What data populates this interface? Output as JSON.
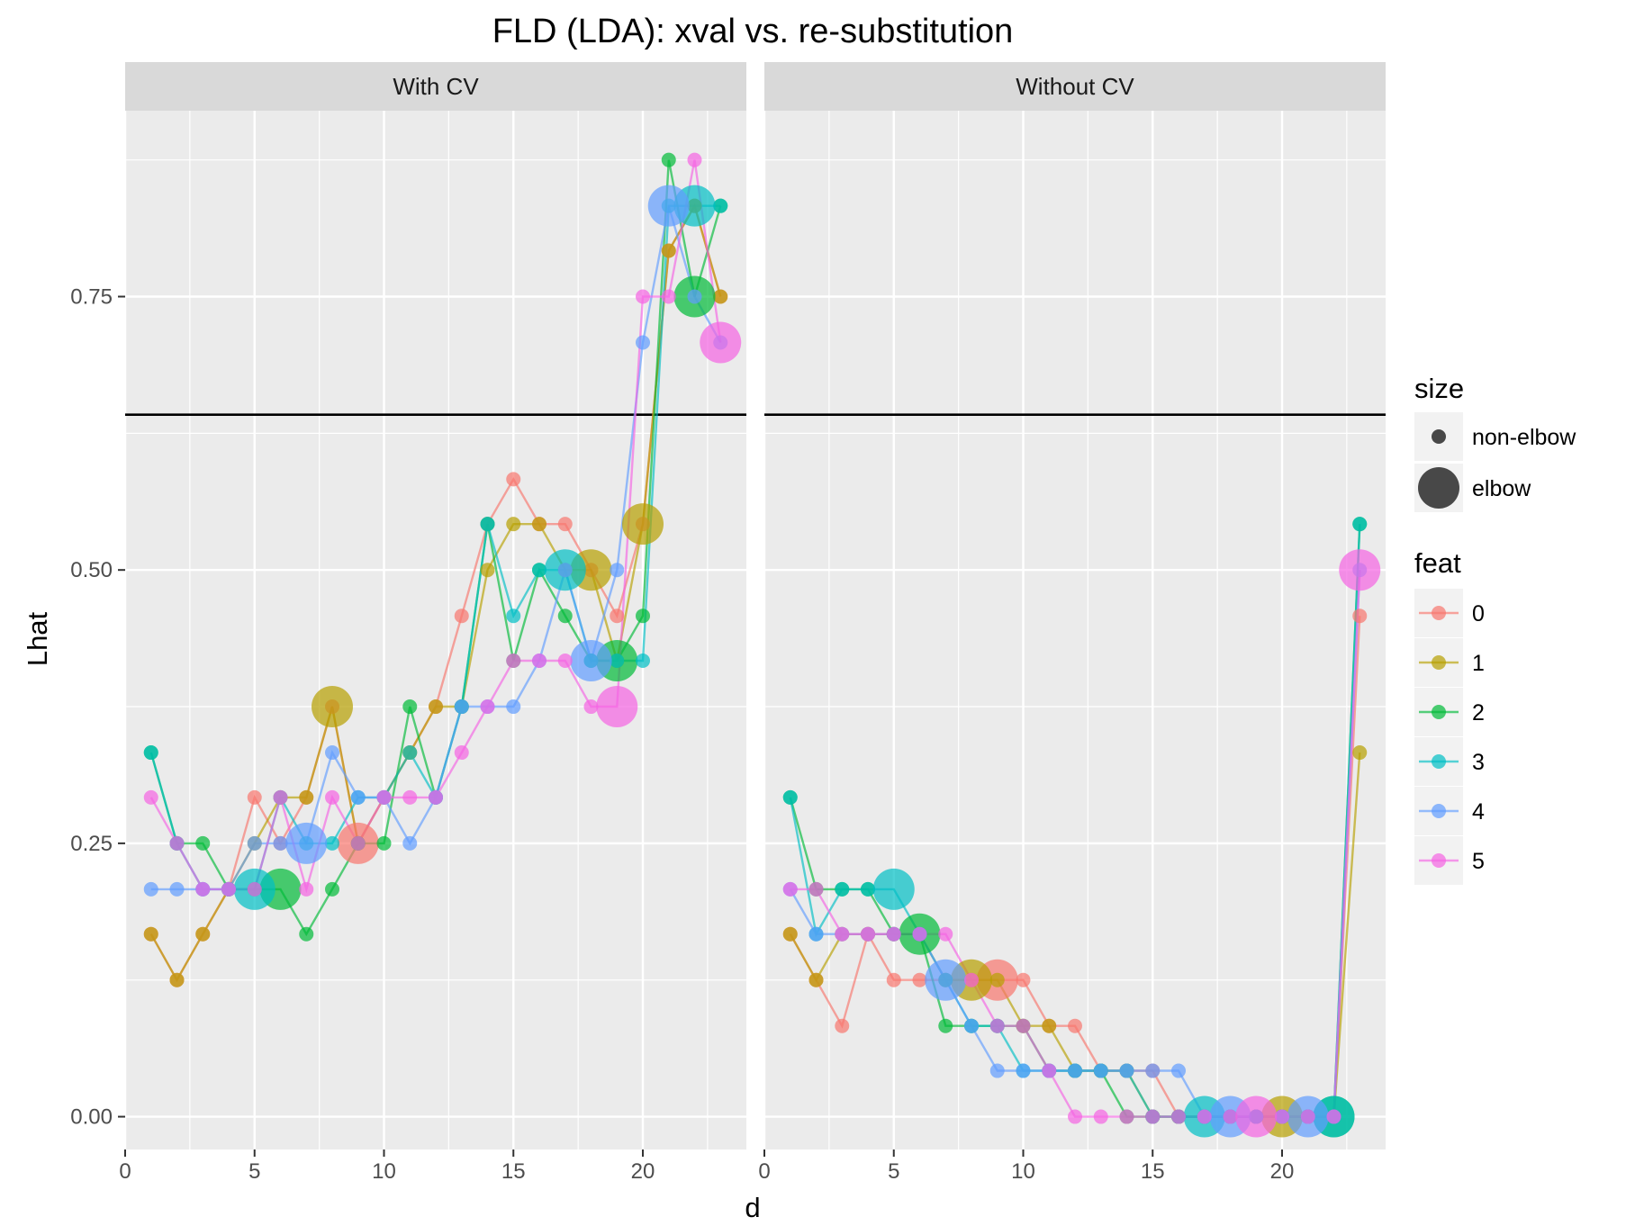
{
  "chart_data": {
    "type": "line",
    "title": "FLD (LDA): xval vs. re-substitution",
    "xlabel": "d",
    "ylabel": "Lhat",
    "xlim": [
      0,
      24
    ],
    "ylim": [
      -0.03,
      0.92
    ],
    "x_ticks": [
      0,
      5,
      10,
      15,
      20
    ],
    "y_ticks": [
      0.0,
      0.25,
      0.5,
      0.75
    ],
    "y_tick_labels": [
      "0.00",
      "0.25",
      "0.50",
      "0.75"
    ],
    "grid": true,
    "hline": 0.642,
    "legend_position": "right",
    "size_legend": {
      "title": "size",
      "entries": [
        "non-elbow",
        "elbow"
      ]
    },
    "color_legend": {
      "title": "feat",
      "entries": [
        "0",
        "1",
        "2",
        "3",
        "4",
        "5"
      ]
    },
    "colors": {
      "0": "#F8766D",
      "1": "#B79F00",
      "2": "#00BA38",
      "3": "#00BFC4",
      "4": "#619CFF",
      "5": "#F564E3"
    },
    "panels": [
      {
        "label": "With CV",
        "series": [
          {
            "name": "0",
            "values": [
              0.167,
              0.125,
              0.167,
              0.208,
              0.292,
              0.25,
              0.292,
              0.375,
              0.25,
              0.292,
              0.333,
              0.375,
              0.458,
              0.542,
              0.583,
              0.542,
              0.542,
              0.5,
              0.458,
              0.542,
              0.792,
              0.833,
              0.75
            ],
            "elbows": [
              9
            ]
          },
          {
            "name": "1",
            "values": [
              0.167,
              0.125,
              0.167,
              0.208,
              0.25,
              0.292,
              0.292,
              0.375,
              0.25,
              0.292,
              0.333,
              0.375,
              0.375,
              0.5,
              0.542,
              0.542,
              0.5,
              0.5,
              0.417,
              0.542,
              0.792,
              0.833,
              0.75
            ],
            "elbows": [
              8,
              18,
              20
            ]
          },
          {
            "name": "2",
            "values": [
              0.333,
              0.25,
              0.25,
              0.208,
              0.208,
              0.208,
              0.167,
              0.208,
              0.25,
              0.25,
              0.375,
              0.292,
              0.375,
              0.542,
              0.417,
              0.5,
              0.458,
              0.417,
              0.417,
              0.458,
              0.875,
              0.75,
              0.833
            ],
            "elbows": [
              6,
              19,
              22
            ]
          },
          {
            "name": "3",
            "values": [
              0.333,
              0.25,
              0.208,
              0.208,
              0.208,
              0.292,
              0.25,
              0.25,
              0.292,
              0.292,
              0.333,
              0.292,
              0.375,
              0.542,
              0.458,
              0.5,
              0.5,
              0.417,
              0.417,
              0.417,
              0.833,
              0.833,
              0.833
            ],
            "elbows": [
              5,
              17,
              22
            ]
          },
          {
            "name": "4",
            "values": [
              0.208,
              0.208,
              0.208,
              0.208,
              0.25,
              0.25,
              0.25,
              0.333,
              0.292,
              0.292,
              0.25,
              0.292,
              0.375,
              0.375,
              0.375,
              0.417,
              0.5,
              0.417,
              0.5,
              0.708,
              0.833,
              0.75,
              0.708
            ],
            "elbows": [
              7,
              18,
              21
            ]
          },
          {
            "name": "5",
            "values": [
              0.292,
              0.25,
              0.208,
              0.208,
              0.208,
              0.292,
              0.208,
              0.292,
              0.25,
              0.292,
              0.292,
              0.292,
              0.333,
              0.375,
              0.417,
              0.417,
              0.417,
              0.375,
              0.375,
              0.75,
              0.75,
              0.875,
              0.708
            ],
            "elbows": [
              19,
              23
            ]
          }
        ]
      },
      {
        "label": "Without CV",
        "series": [
          {
            "name": "0",
            "values": [
              0.167,
              0.125,
              0.083,
              0.167,
              0.125,
              0.125,
              0.125,
              0.125,
              0.125,
              0.125,
              0.083,
              0.083,
              0.042,
              0.042,
              0.042,
              0.0,
              0.0,
              0.0,
              0.0,
              0.0,
              0.0,
              0.0,
              0.458
            ],
            "elbows": [
              9
            ]
          },
          {
            "name": "1",
            "values": [
              0.167,
              0.125,
              0.167,
              0.167,
              0.167,
              0.167,
              0.125,
              0.125,
              0.125,
              0.083,
              0.083,
              0.042,
              0.042,
              0.042,
              0.0,
              0.0,
              0.0,
              0.0,
              0.0,
              0.0,
              0.0,
              0.0,
              0.333
            ],
            "elbows": [
              8,
              20
            ]
          },
          {
            "name": "2",
            "values": [
              0.292,
              0.208,
              0.208,
              0.208,
              0.167,
              0.167,
              0.083,
              0.083,
              0.083,
              0.083,
              0.042,
              0.042,
              0.042,
              0.0,
              0.0,
              0.0,
              0.0,
              0.0,
              0.0,
              0.0,
              0.0,
              0.0,
              0.542
            ],
            "elbows": [
              6,
              22
            ]
          },
          {
            "name": "3",
            "values": [
              0.292,
              0.167,
              0.208,
              0.208,
              0.208,
              0.167,
              0.125,
              0.083,
              0.083,
              0.042,
              0.042,
              0.042,
              0.042,
              0.042,
              0.0,
              0.0,
              0.0,
              0.0,
              0.0,
              0.0,
              0.0,
              0.0,
              0.542
            ],
            "elbows": [
              5,
              17,
              22
            ]
          },
          {
            "name": "4",
            "values": [
              0.208,
              0.167,
              0.167,
              0.167,
              0.167,
              0.167,
              0.125,
              0.083,
              0.042,
              0.042,
              0.042,
              0.042,
              0.042,
              0.042,
              0.042,
              0.042,
              0.0,
              0.0,
              0.0,
              0.0,
              0.0,
              0.0,
              0.5
            ],
            "elbows": [
              7,
              18,
              21
            ]
          },
          {
            "name": "5",
            "values": [
              0.208,
              0.208,
              0.167,
              0.167,
              0.167,
              0.167,
              0.167,
              0.125,
              0.083,
              0.083,
              0.042,
              0.0,
              0.0,
              0.0,
              0.0,
              0.0,
              0.0,
              0.0,
              0.0,
              0.0,
              0.0,
              0.0,
              0.5
            ],
            "elbows": [
              19,
              23
            ]
          }
        ]
      }
    ]
  }
}
